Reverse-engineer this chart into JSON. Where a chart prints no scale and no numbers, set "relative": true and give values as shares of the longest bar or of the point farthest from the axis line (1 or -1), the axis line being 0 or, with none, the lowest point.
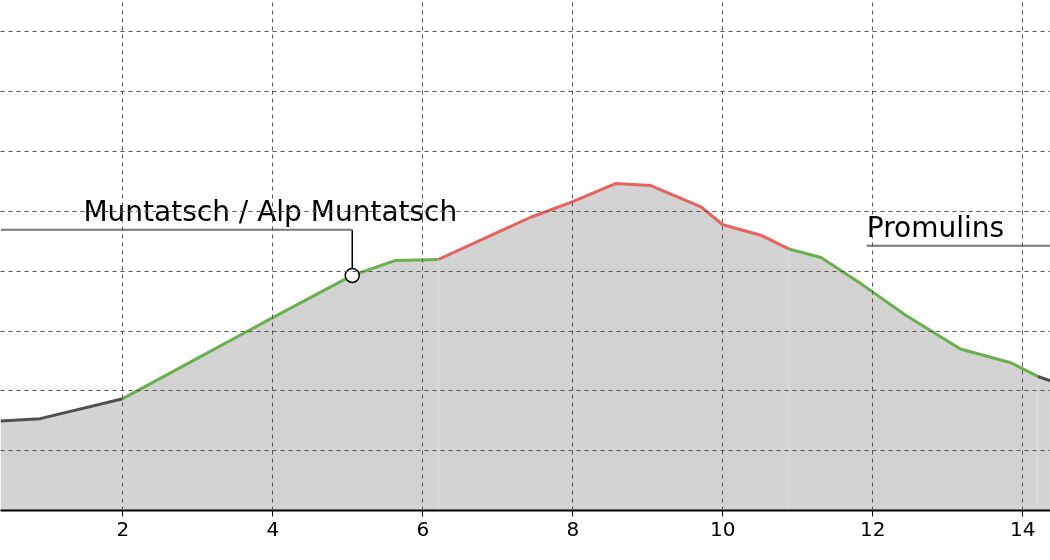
{
  "chart_data": {
    "type": "area",
    "relative": true,
    "xlim": [
      0.37,
      14.37
    ],
    "xticks": [
      2,
      4,
      6,
      8,
      10,
      12,
      14
    ],
    "grid": true,
    "series": [
      {
        "color": "#505050",
        "x": [
          0.37,
          0.9,
          2.0
        ],
        "values": [
          0.274,
          0.281,
          0.342
        ]
      },
      {
        "color": "#6ab04c",
        "x": [
          2.0,
          3.0,
          4.0,
          5.06,
          5.64,
          6.21
        ],
        "values": [
          0.342,
          0.466,
          0.59,
          0.719,
          0.765,
          0.768
        ]
      },
      {
        "color": "#e8625f",
        "x": [
          6.21,
          7.04,
          7.44,
          8.0,
          8.57,
          9.04,
          9.71,
          10.0,
          10.51,
          10.88
        ],
        "values": [
          0.768,
          0.855,
          0.897,
          0.945,
          1.0,
          0.994,
          0.929,
          0.874,
          0.842,
          0.8
        ]
      },
      {
        "color": "#6ab04c",
        "x": [
          10.88,
          11.31,
          11.84,
          12.44,
          13.17,
          13.84,
          14.2
        ],
        "values": [
          0.8,
          0.774,
          0.694,
          0.597,
          0.494,
          0.452,
          0.41
        ]
      },
      {
        "color": "#505050",
        "x": [
          14.2,
          14.37
        ],
        "values": [
          0.41,
          0.397
        ]
      }
    ],
    "annotations": [
      {
        "text": "Muntatsch / Alp Muntatsch",
        "x": 5.06,
        "y": 0.719
      },
      "Promulins"
    ]
  }
}
